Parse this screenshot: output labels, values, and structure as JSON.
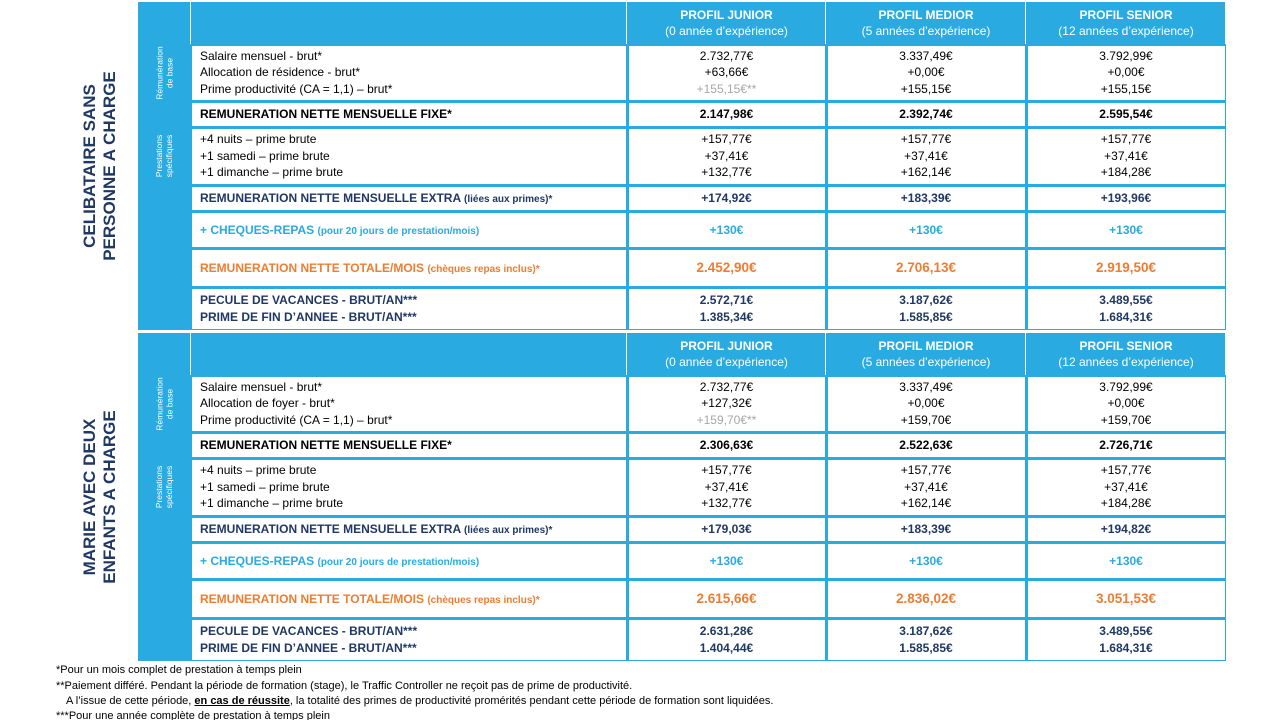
{
  "sections": [
    {
      "title": [
        "CELIBATAIRE SANS",
        "PERSONNE A CHARGE"
      ],
      "profiles": [
        {
          "name": "PROFIL JUNIOR",
          "experience": "(0 année d’expérience)"
        },
        {
          "name": "PROFIL MEDIOR",
          "experience": "(5 années d’expérience)"
        },
        {
          "name": "PROFIL SENIOR",
          "experience": "(12 années d’expérience)"
        }
      ],
      "base": {
        "group": "Rémunération de base",
        "rows": [
          {
            "label": "Salaire mensuel - brut*",
            "values": [
              "2.732,77€",
              "3.337,49€",
              "3.792,99€"
            ]
          },
          {
            "label": "Allocation de résidence - brut*",
            "values": [
              "+63,66€",
              "+0,00€",
              "+0,00€"
            ]
          },
          {
            "label": "Prime productivité (CA = 1,1) – brut*",
            "values": [
              "+155,15€**",
              "+155,15€",
              "+155,15€"
            ]
          }
        ]
      },
      "fixe": {
        "label": "REMUNERATION NETTE MENSUELLE FIXE*",
        "values": [
          "2.147,98€",
          "2.392,74€",
          "2.595,54€"
        ]
      },
      "prestations": {
        "group": "Prestations spécifiques",
        "rows": [
          {
            "label": "+4 nuits – prime brute",
            "values": [
              "+157,77€",
              "+157,77€",
              "+157,77€"
            ]
          },
          {
            "label": "+1 samedi – prime brute",
            "values": [
              "+37,41€",
              "+37,41€",
              "+37,41€"
            ]
          },
          {
            "label": "+1 dimanche – prime brute",
            "values": [
              "+132,77€",
              "+162,14€",
              "+184,28€"
            ]
          }
        ]
      },
      "extra": {
        "label": "REMUNERATION NETTE MENSUELLE EXTRA",
        "note": "(liées aux primes)*",
        "values": [
          "+174,92€",
          "+183,39€",
          "+193,96€"
        ]
      },
      "cheques": {
        "label": "+ CHEQUES-REPAS",
        "note": "(pour 20 jours de prestation/mois)",
        "values": [
          "+130€",
          "+130€",
          "+130€"
        ]
      },
      "totale": {
        "label": "REMUNERATION NETTE TOTALE/MOIS",
        "note": "(chèques repas inclus)*",
        "values": [
          "2.452,90€",
          "2.706,13€",
          "2.919,50€"
        ]
      },
      "annual": {
        "rows": [
          {
            "label": "PECULE DE VACANCES - BRUT/AN***",
            "values": [
              "2.572,71€",
              "3.187,62€",
              "3.489,55€"
            ]
          },
          {
            "label": "PRIME DE FIN D’ANNEE - BRUT/AN***",
            "values": [
              "1.385,34€",
              "1.585,85€",
              "1.684,31€"
            ]
          }
        ]
      }
    },
    {
      "title": [
        "MARIE AVEC DEUX",
        "ENFANTS A CHARGE"
      ],
      "profiles": [
        {
          "name": "PROFIL JUNIOR",
          "experience": "(0 année d’expérience)"
        },
        {
          "name": "PROFIL MEDIOR",
          "experience": "(5 années d’expérience)"
        },
        {
          "name": "PROFIL SENIOR",
          "experience": "(12 années d’expérience)"
        }
      ],
      "base": {
        "group": "Rémunération de base",
        "rows": [
          {
            "label": "Salaire mensuel - brut*",
            "values": [
              "2.732,77€",
              "3.337,49€",
              "3.792,99€"
            ]
          },
          {
            "label": "Allocation de foyer - brut*",
            "values": [
              "+127,32€",
              "+0,00€",
              "+0,00€"
            ]
          },
          {
            "label": "Prime productivité (CA = 1,1) – brut*",
            "values": [
              "+159,70€**",
              "+159,70€",
              "+159,70€"
            ]
          }
        ]
      },
      "fixe": {
        "label": "REMUNERATION NETTE MENSUELLE FIXE*",
        "values": [
          "2.306,63€",
          "2.522,63€",
          "2.726,71€"
        ]
      },
      "prestations": {
        "group": "Prestations spécifiques",
        "rows": [
          {
            "label": "+4 nuits – prime brute",
            "values": [
              "+157,77€",
              "+157,77€",
              "+157,77€"
            ]
          },
          {
            "label": "+1 samedi – prime brute",
            "values": [
              "+37,41€",
              "+37,41€",
              "+37,41€"
            ]
          },
          {
            "label": "+1 dimanche – prime brute",
            "values": [
              "+132,77€",
              "+162,14€",
              "+184,28€"
            ]
          }
        ]
      },
      "extra": {
        "label": "REMUNERATION NETTE MENSUELLE EXTRA",
        "note": "(liées aux primes)*",
        "values": [
          "+179,03€",
          "+183,39€",
          "+194,82€"
        ]
      },
      "cheques": {
        "label": "+ CHEQUES-REPAS",
        "note": "(pour 20 jours de prestation/mois)",
        "values": [
          "+130€",
          "+130€",
          "+130€"
        ]
      },
      "totale": {
        "label": "REMUNERATION NETTE TOTALE/MOIS",
        "note": "(chèques repas inclus)*",
        "values": [
          "2.615,66€",
          "2.836,02€",
          "3.051,53€"
        ]
      },
      "annual": {
        "rows": [
          {
            "label": "PECULE DE VACANCES - BRUT/AN***",
            "values": [
              "2.631,28€",
              "3.187,62€",
              "3.489,55€"
            ]
          },
          {
            "label": "PRIME DE FIN D’ANNEE - BRUT/AN***",
            "values": [
              "1.404,44€",
              "1.585,85€",
              "1.684,31€"
            ]
          }
        ]
      }
    }
  ],
  "footnotes": [
    "*Pour un mois complet de prestation à temps plein",
    "**Paiement différé. Pendant la période de formation (stage), le Traffic Controller ne reçoit pas de prime de productivité.",
    {
      "before": "A l’issue de cette période, ",
      "emphasis": "en cas de réussite",
      "after": ", la totalité des primes de productivité promérités pendant cette période de formation sont liquidées."
    },
    "***Pour une année complète de prestation à temps plein"
  ]
}
